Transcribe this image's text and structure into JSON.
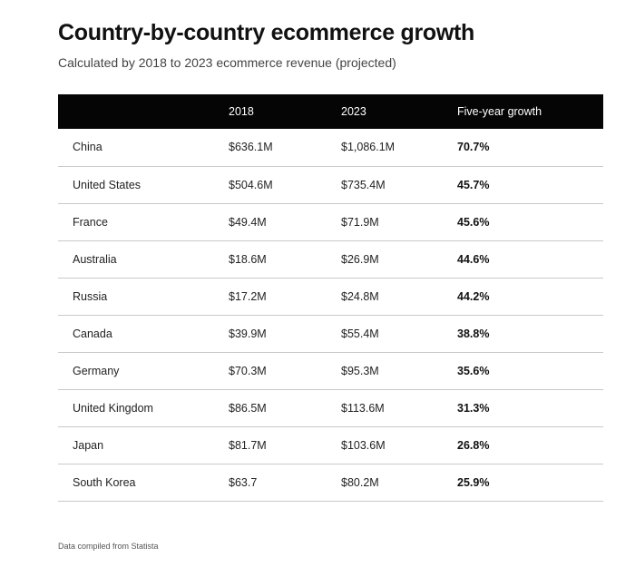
{
  "title": "Country-by-country ecommerce growth",
  "subtitle": "Calculated by 2018 to 2023 ecommerce revenue (projected)",
  "table": {
    "headers": [
      "",
      "2018",
      "2023",
      "Five-year growth"
    ],
    "rows": [
      {
        "country": "China",
        "y2018": "$636.1M",
        "y2023": "$1,086.1M",
        "growth": "70.7%"
      },
      {
        "country": "United States",
        "y2018": "$504.6M",
        "y2023": "$735.4M",
        "growth": "45.7%"
      },
      {
        "country": "France",
        "y2018": "$49.4M",
        "y2023": "$71.9M",
        "growth": "45.6%"
      },
      {
        "country": "Australia",
        "y2018": "$18.6M",
        "y2023": "$26.9M",
        "growth": "44.6%"
      },
      {
        "country": "Russia",
        "y2018": "$17.2M",
        "y2023": "$24.8M",
        "growth": "44.2%"
      },
      {
        "country": "Canada",
        "y2018": "$39.9M",
        "y2023": "$55.4M",
        "growth": "38.8%"
      },
      {
        "country": "Germany",
        "y2018": "$70.3M",
        "y2023": "$95.3M",
        "growth": "35.6%"
      },
      {
        "country": "United Kingdom",
        "y2018": "$86.5M",
        "y2023": "$113.6M",
        "growth": "31.3%"
      },
      {
        "country": "Japan",
        "y2018": "$81.7M",
        "y2023": "$103.6M",
        "growth": "26.8%"
      },
      {
        "country": "South Korea",
        "y2018": "$63.7",
        "y2023": "$80.2M",
        "growth": "25.9%"
      }
    ]
  },
  "source": "Data compiled from Statista"
}
